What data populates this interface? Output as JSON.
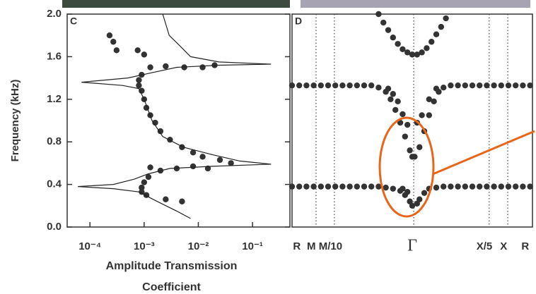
{
  "chart_data": [
    {
      "type": "scatter",
      "panel_label": "C",
      "ylabel": "Frequency (kHz)",
      "xlabel": [
        "Amplitude Transmission",
        "Coefficient"
      ],
      "xscale": "log",
      "xlim": [
        3.8e-05,
        0.49
      ],
      "ylim": [
        0,
        2
      ],
      "xticks": [
        {
          "value": 0.0001,
          "label": "10⁻⁴"
        },
        {
          "value": 0.001,
          "label": "10⁻³"
        },
        {
          "value": 0.01,
          "label": "10⁻²"
        },
        {
          "value": 0.1,
          "label": "10⁻¹"
        }
      ],
      "yticks": [
        {
          "value": 0,
          "label": "0.0"
        },
        0.4,
        0.8,
        1.2,
        1.6,
        {
          "value": 2,
          "label": "2.0"
        }
      ],
      "series": [
        {
          "mode": "markers",
          "color": "#333333",
          "x": [
            0.00023,
            0.00027,
            0.00031,
            0.00076,
            0.001,
            0.0013,
            0.0025,
            0.0055,
            0.012,
            0.02,
            0.0009,
            0.0008,
            0.0008,
            0.0009,
            0.001,
            0.0011,
            0.0013,
            0.0016,
            0.002,
            0.003,
            0.005,
            0.008,
            0.012,
            0.025,
            0.04,
            0.015,
            0.008,
            0.004,
            0.002,
            0.0013,
            0.0012,
            0.001,
            0.0009,
            0.0009,
            0.0011,
            0.0025,
            0.005
          ],
          "values": [
            1.8,
            1.74,
            1.66,
            1.66,
            1.62,
            1.5,
            1.51,
            1.5,
            1.5,
            1.52,
            1.43,
            1.38,
            1.33,
            1.28,
            1.2,
            1.12,
            1.05,
            0.98,
            0.9,
            0.82,
            0.75,
            0.7,
            0.66,
            0.63,
            0.6,
            0.55,
            0.57,
            0.55,
            0.53,
            0.56,
            0.47,
            0.42,
            0.37,
            0.33,
            0.3,
            0.26,
            0.24
          ]
        },
        {
          "mode": "line",
          "color": "#222222",
          "x": [
            0.0022,
            0.0029,
            0.0046,
            0.0072,
            0.024,
            0.22,
            0.024,
            0.004,
            0.0014,
            0.0005,
            7e-05,
            0.0004,
            0.0008,
            0.001,
            0.0014,
            0.0022,
            0.0053,
            0.018,
            0.058,
            0.22,
            0.018,
            0.003,
            0.0012,
            0.00066,
            0.00027,
            6e-05,
            0.00027,
            0.0008,
            0.0016,
            0.004,
            0.0072
          ],
          "values": [
            2.0,
            1.8,
            1.7,
            1.6,
            1.55,
            1.53,
            1.52,
            1.5,
            1.45,
            1.4,
            1.36,
            1.33,
            1.3,
            1.2,
            1.0,
            0.85,
            0.75,
            0.68,
            0.62,
            0.59,
            0.57,
            0.55,
            0.5,
            0.45,
            0.4,
            0.38,
            0.36,
            0.33,
            0.25,
            0.15,
            0.08
          ]
        }
      ]
    },
    {
      "type": "scatter",
      "panel_label": "D",
      "xlim": [
        0,
        1
      ],
      "ylim": [
        0,
        2
      ],
      "xticks": [
        {
          "value": 0.02,
          "label": "R"
        },
        {
          "value": 0.08,
          "label": "M"
        },
        {
          "value": 0.16,
          "label": "M/10"
        },
        {
          "value": 0.5,
          "label": "Γ"
        },
        {
          "value": 0.8,
          "label": "X/5"
        },
        {
          "value": 0.88,
          "label": "X"
        },
        {
          "value": 0.97,
          "label": "R"
        }
      ],
      "dotted_lines": [
        0.1,
        0.176,
        0.506,
        0.82,
        0.897
      ],
      "series": [
        {
          "mode": "markers",
          "color": "#333333",
          "x": [
            0.0,
            0.03,
            0.06,
            0.09,
            0.12,
            0.15,
            0.18,
            0.21,
            0.24,
            0.27,
            0.3,
            0.33,
            0.36,
            0.39,
            0.42,
            0.45,
            0.47,
            0.49,
            0.5,
            0.46,
            0.48,
            0.52,
            0.53,
            0.55,
            0.57,
            0.6,
            0.63,
            0.66,
            0.69,
            0.72,
            0.75,
            0.78,
            0.81,
            0.84,
            0.87,
            0.9,
            0.93,
            0.96,
            0.99
          ],
          "values": [
            0.38,
            0.38,
            0.38,
            0.38,
            0.38,
            0.38,
            0.38,
            0.38,
            0.38,
            0.38,
            0.38,
            0.38,
            0.38,
            0.37,
            0.36,
            0.34,
            0.3,
            0.24,
            0.2,
            0.36,
            0.33,
            0.22,
            0.26,
            0.32,
            0.36,
            0.37,
            0.38,
            0.38,
            0.38,
            0.38,
            0.38,
            0.38,
            0.38,
            0.38,
            0.38,
            0.38,
            0.38,
            0.38,
            0.38
          ]
        },
        {
          "mode": "markers",
          "color": "#333333",
          "x": [
            0.0,
            0.03,
            0.06,
            0.09,
            0.12,
            0.15,
            0.18,
            0.21,
            0.24,
            0.27,
            0.3,
            0.33,
            0.36,
            0.39,
            0.41,
            0.43,
            0.45,
            0.47,
            0.49,
            0.5,
            0.4,
            0.42,
            0.44,
            0.46,
            0.48,
            0.51,
            0.53,
            0.55,
            0.57,
            0.59,
            0.61,
            0.63,
            0.52,
            0.54,
            0.57,
            0.6,
            0.66,
            0.69,
            0.72,
            0.75,
            0.78,
            0.81,
            0.84,
            0.87,
            0.9,
            0.93,
            0.96,
            0.99
          ],
          "values": [
            1.33,
            1.33,
            1.33,
            1.33,
            1.33,
            1.33,
            1.33,
            1.33,
            1.33,
            1.33,
            1.33,
            1.33,
            1.31,
            1.27,
            1.2,
            1.1,
            0.98,
            0.85,
            0.72,
            0.66,
            1.3,
            1.25,
            1.18,
            1.06,
            0.96,
            0.66,
            0.75,
            0.9,
            1.05,
            1.18,
            1.27,
            1.31,
            0.98,
            1.05,
            1.2,
            1.3,
            1.33,
            1.33,
            1.33,
            1.33,
            1.33,
            1.33,
            1.33,
            1.33,
            1.33,
            1.33,
            1.33,
            1.33
          ]
        },
        {
          "mode": "markers",
          "color": "#333333",
          "x": [
            0.36,
            0.38,
            0.4,
            0.42,
            0.44,
            0.46,
            0.48,
            0.5,
            0.52,
            0.54,
            0.56,
            0.58,
            0.6,
            0.62,
            0.64
          ],
          "values": [
            2.0,
            1.92,
            1.85,
            1.78,
            1.72,
            1.67,
            1.64,
            1.62,
            1.62,
            1.64,
            1.68,
            1.74,
            1.81,
            1.88,
            1.96
          ]
        }
      ]
    }
  ]
}
